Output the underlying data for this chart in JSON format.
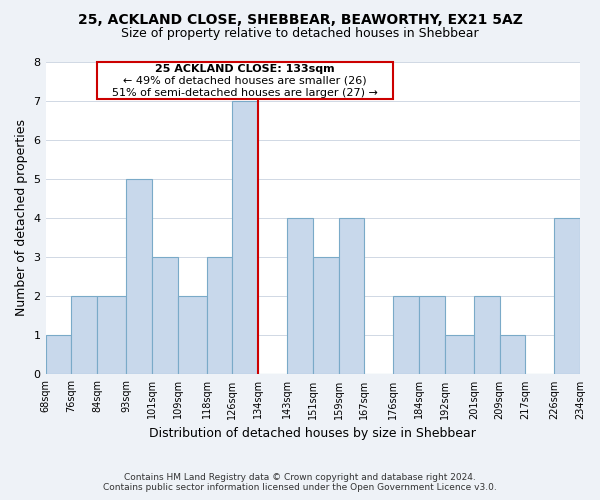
{
  "title": "25, ACKLAND CLOSE, SHEBBEAR, BEAWORTHY, EX21 5AZ",
  "subtitle": "Size of property relative to detached houses in Shebbear",
  "xlabel": "Distribution of detached houses by size in Shebbear",
  "ylabel": "Number of detached properties",
  "bar_color": "#c8d8eb",
  "bar_edge_color": "#7aaac8",
  "reference_line_x": 134,
  "reference_line_color": "#cc0000",
  "bin_edges": [
    68,
    76,
    84,
    93,
    101,
    109,
    118,
    126,
    134,
    143,
    151,
    159,
    167,
    176,
    184,
    192,
    201,
    209,
    217,
    226,
    234
  ],
  "bin_labels": [
    "68sqm",
    "76sqm",
    "84sqm",
    "93sqm",
    "101sqm",
    "109sqm",
    "118sqm",
    "126sqm",
    "134sqm",
    "143sqm",
    "151sqm",
    "159sqm",
    "167sqm",
    "176sqm",
    "184sqm",
    "192sqm",
    "201sqm",
    "209sqm",
    "217sqm",
    "226sqm",
    "234sqm"
  ],
  "counts": [
    1,
    2,
    2,
    5,
    3,
    2,
    3,
    7,
    0,
    4,
    3,
    4,
    0,
    2,
    2,
    1,
    2,
    1,
    0,
    4
  ],
  "ylim": [
    0,
    8
  ],
  "yticks": [
    0,
    1,
    2,
    3,
    4,
    5,
    6,
    7,
    8
  ],
  "annotation_title": "25 ACKLAND CLOSE: 133sqm",
  "annotation_line1": "← 49% of detached houses are smaller (26)",
  "annotation_line2": "51% of semi-detached houses are larger (27) →",
  "footnote1": "Contains HM Land Registry data © Crown copyright and database right 2024.",
  "footnote2": "Contains public sector information licensed under the Open Government Licence v3.0.",
  "background_color": "#eef2f7",
  "plot_background_color": "#ffffff",
  "grid_color": "#d0d8e4"
}
